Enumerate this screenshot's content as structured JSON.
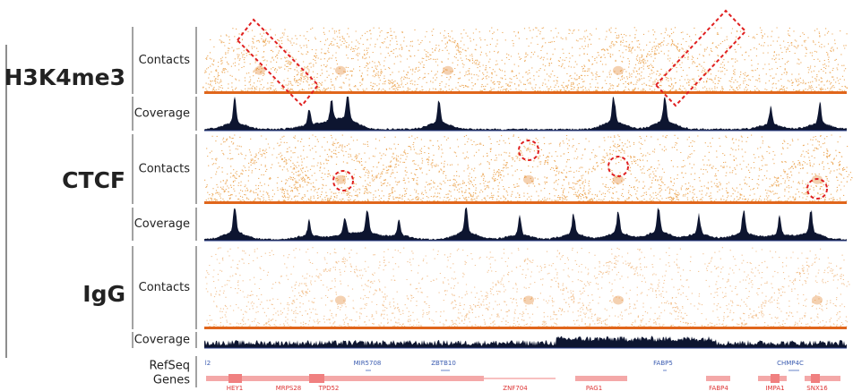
{
  "groups": [
    {
      "label": "H3K4me3",
      "tracks": [
        "Contacts",
        "Coverage"
      ]
    },
    {
      "label": "CTCF",
      "tracks": [
        "Contacts",
        "Coverage"
      ]
    },
    {
      "label": "IgG",
      "tracks": [
        "Contacts",
        "Coverage"
      ]
    }
  ],
  "genes": {
    "label_lines": [
      "RefSeq",
      "Genes"
    ],
    "top": [
      "l2",
      "MIR5708",
      "ZBTB10",
      "FABP5",
      "CHMP4C"
    ],
    "bottom": [
      "HEY1",
      "MRPS28",
      "TPD52",
      "ZNF704",
      "PAG1",
      "FABP4",
      "IMPA1",
      "SNX16"
    ]
  }
}
